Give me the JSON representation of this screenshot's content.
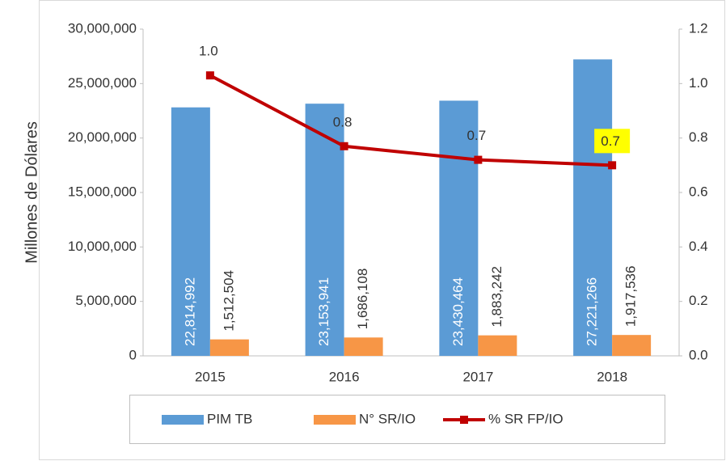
{
  "chart_data": {
    "type": "bar_line",
    "y_label": "Millones de Dólares",
    "categories": [
      "2015",
      "2016",
      "2017",
      "2018"
    ],
    "series": [
      {
        "name": "PIM TB",
        "type": "bar",
        "color": "#5b9bd5",
        "values": [
          22814992,
          23153941,
          23430464,
          27221266
        ],
        "value_labels": [
          "22,814,992",
          "23,153,941",
          "23,430,464",
          "27,221,266"
        ]
      },
      {
        "name": "N° SR/IO",
        "type": "bar",
        "color": "#f79646",
        "values": [
          1512504,
          1686108,
          1883242,
          1917536
        ],
        "value_labels": [
          "1,512,504",
          "1,686,108",
          "1,883,242",
          "1,917,536"
        ]
      },
      {
        "name": "% SR FP/IO",
        "type": "line",
        "axis": "y2",
        "color": "#c00000",
        "values": [
          1.03,
          0.77,
          0.72,
          0.7
        ],
        "value_labels": [
          "1.0",
          "0.8",
          "0.7",
          "0.7"
        ]
      }
    ],
    "ylim": [
      0,
      30000000
    ],
    "yticks": [
      0,
      {
        "value": 5000000,
        "label": "5,000,000"
      },
      {
        "value": 10000000,
        "label": "10,000,000"
      },
      {
        "value": 15000000,
        "label": "15,000,000"
      },
      {
        "value": 20000000,
        "label": "20,000,000"
      },
      {
        "value": 25000000,
        "label": "25,000,000"
      },
      {
        "value": 30000000,
        "label": "30,000,000"
      }
    ],
    "y2lim": [
      0,
      1.2
    ],
    "y2ticks": [
      {
        "value": 0,
        "label": "0.0"
      },
      0.2,
      0.4,
      0.6,
      0.8,
      {
        "value": 1,
        "label": "1.0"
      },
      1.2
    ],
    "highlight": {
      "index": 3,
      "color": "#ffff00"
    },
    "legend": "bottom"
  }
}
